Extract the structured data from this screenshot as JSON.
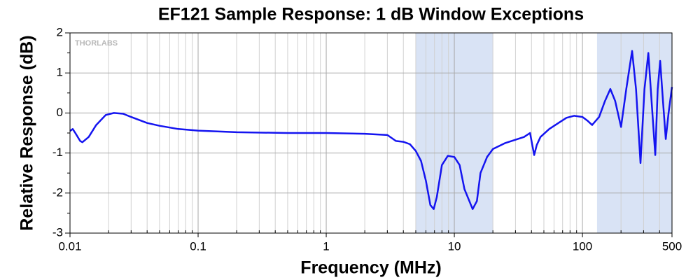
{
  "chart_data": {
    "type": "line",
    "title": "EF121 Sample Response: 1 dB Window Exceptions",
    "xlabel": "Frequency (MHz)",
    "ylabel": "Relative Response (dB)",
    "watermark": "THORLABS",
    "xscale": "log",
    "grid": true,
    "xlim": [
      0.01,
      500
    ],
    "xticks": [
      0.01,
      0.1,
      1,
      10,
      100,
      500
    ],
    "xminorticks": [
      0.02,
      0.03,
      0.04,
      0.05,
      0.06,
      0.07,
      0.08,
      0.09,
      0.2,
      0.3,
      0.4,
      0.5,
      0.6,
      0.7,
      0.8,
      0.9,
      2,
      3,
      4,
      5,
      6,
      7,
      8,
      9,
      20,
      30,
      40,
      50,
      60,
      70,
      80,
      90,
      200,
      300,
      400
    ],
    "ylim": [
      -3,
      2
    ],
    "yticks": [
      -3,
      -2,
      -1,
      0,
      1,
      2
    ],
    "yminorticks": [
      -2.5,
      -1.5,
      -0.5,
      0.5,
      1.5
    ],
    "shaded_regions": [
      [
        5,
        20
      ],
      [
        130,
        500
      ]
    ],
    "shade_color": "#d9e3f5",
    "series": [
      {
        "color": "#1414f0",
        "x": [
          0.01,
          0.0105,
          0.011,
          0.012,
          0.0125,
          0.014,
          0.016,
          0.019,
          0.022,
          0.026,
          0.03,
          0.04,
          0.05,
          0.07,
          0.1,
          0.2,
          0.5,
          1,
          2,
          3,
          3.5,
          4,
          4.5,
          5,
          5.5,
          6,
          6.5,
          6.9,
          7.3,
          8,
          8.9,
          10,
          11,
          12,
          13.9,
          15,
          16,
          18,
          20,
          25,
          35,
          39,
          42,
          44,
          47,
          55,
          65,
          75,
          86,
          100,
          110,
          119,
          135,
          150,
          165,
          180,
          200,
          220,
          244,
          262,
          284,
          305,
          327,
          348,
          370,
          387,
          404,
          425,
          447,
          470,
          500
        ],
        "values": [
          -0.45,
          -0.4,
          -0.5,
          -0.7,
          -0.73,
          -0.6,
          -0.3,
          -0.05,
          0,
          -0.02,
          -0.1,
          -0.25,
          -0.32,
          -0.4,
          -0.44,
          -0.48,
          -0.5,
          -0.5,
          -0.52,
          -0.55,
          -0.7,
          -0.72,
          -0.78,
          -0.95,
          -1.2,
          -1.7,
          -2.3,
          -2.4,
          -2.1,
          -1.3,
          -1.07,
          -1.1,
          -1.3,
          -1.9,
          -2.4,
          -2.2,
          -1.5,
          -1.1,
          -0.9,
          -0.75,
          -0.6,
          -0.5,
          -1.05,
          -0.8,
          -0.6,
          -0.4,
          -0.25,
          -0.12,
          -0.07,
          -0.1,
          -0.2,
          -0.3,
          -0.1,
          0.3,
          0.6,
          0.3,
          -0.35,
          0.6,
          1.55,
          0.6,
          -1.25,
          0.6,
          1.5,
          0.2,
          -1.05,
          0.6,
          1.3,
          0.3,
          -0.65,
          0,
          0.65
        ]
      }
    ]
  }
}
